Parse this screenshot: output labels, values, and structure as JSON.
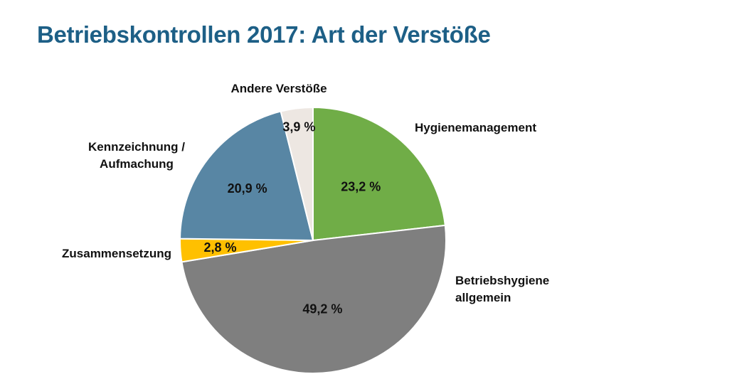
{
  "chart_data": {
    "type": "pie",
    "title": "Betriebskontrollen 2017: Art der Verstöße",
    "slices": [
      {
        "name": "Hygienemanagement",
        "value": 23.2,
        "value_label": "23,2 %",
        "label_lines": [
          "Hygienemanagement"
        ],
        "color": "#70ad47"
      },
      {
        "name": "Betriebshygiene allgemein",
        "value": 49.2,
        "value_label": "49,2 %",
        "label_lines": [
          "Betriebshygiene",
          "allgemein"
        ],
        "color": "#7f7f7f"
      },
      {
        "name": "Zusammensetzung",
        "value": 2.8,
        "value_label": "2,8 %",
        "label_lines": [
          "Zusammensetzung"
        ],
        "color": "#ffc000"
      },
      {
        "name": "Kennzeichnung / Aufmachung",
        "value": 20.9,
        "value_label": "20,9 %",
        "label_lines": [
          "Kennzeichnung /",
          "Aufmachung"
        ],
        "color": "#5886a4"
      },
      {
        "name": "Andere Verstöße",
        "value": 3.9,
        "value_label": "3,9 %",
        "label_lines": [
          "Andere Verstöße"
        ],
        "color": "#ede7e2"
      }
    ],
    "start": "12 o'clock",
    "direction": "clockwise"
  }
}
